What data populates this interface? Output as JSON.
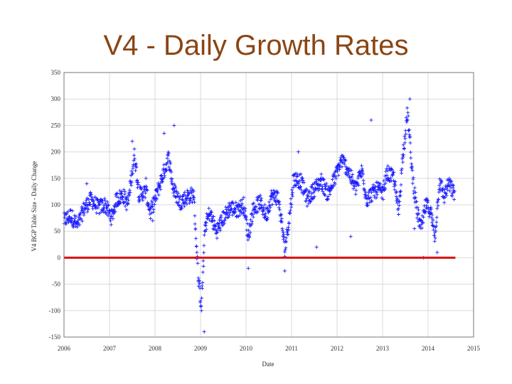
{
  "slide": {
    "title": "V4 - Daily Growth Rates"
  },
  "colors": {
    "title": "#8B4513",
    "points": "#1a1aff",
    "zero_line": "#dd1111",
    "grid": "#d9d9d9"
  },
  "chart_data": {
    "type": "scatter",
    "title": "V4 - Daily Growth Rates",
    "xlabel": "Date",
    "ylabel": "V4 BGP Table Size - Daily Change",
    "xlim": [
      2006,
      2015
    ],
    "ylim": [
      -150,
      350
    ],
    "x_ticks": [
      2006,
      2007,
      2008,
      2009,
      2010,
      2011,
      2012,
      2013,
      2014,
      2015
    ],
    "x_tick_labels": [
      "2006",
      "2007",
      "2008",
      "2009",
      "2010",
      "2011",
      "2012",
      "2013",
      "2014",
      "2015"
    ],
    "y_ticks": [
      350,
      300,
      250,
      200,
      150,
      100,
      50,
      0,
      -50,
      -100,
      -150
    ],
    "y_tick_labels": [
      "350",
      "300",
      "250",
      "200",
      "150",
      "100",
      "50",
      "0",
      "-50",
      "-100",
      "-150"
    ],
    "reference_line": {
      "y": 0,
      "x_start": 2006,
      "x_end": 2014.6,
      "color": "#dd1111"
    },
    "marker": "+",
    "series_trend": [
      [
        2006.0,
        70
      ],
      [
        2006.15,
        80
      ],
      [
        2006.3,
        60
      ],
      [
        2006.45,
        95
      ],
      [
        2006.6,
        110
      ],
      [
        2006.75,
        95
      ],
      [
        2006.9,
        100
      ],
      [
        2007.05,
        75
      ],
      [
        2007.15,
        110
      ],
      [
        2007.3,
        118
      ],
      [
        2007.4,
        100
      ],
      [
        2007.55,
        195
      ],
      [
        2007.65,
        120
      ],
      [
        2007.8,
        125
      ],
      [
        2007.9,
        85
      ],
      [
        2008.0,
        110
      ],
      [
        2008.15,
        150
      ],
      [
        2008.3,
        190
      ],
      [
        2008.4,
        130
      ],
      [
        2008.55,
        105
      ],
      [
        2008.7,
        115
      ],
      [
        2008.85,
        120
      ],
      [
        2008.95,
        -40
      ],
      [
        2009.02,
        -90
      ],
      [
        2009.1,
        60
      ],
      [
        2009.2,
        85
      ],
      [
        2009.35,
        50
      ],
      [
        2009.5,
        75
      ],
      [
        2009.65,
        95
      ],
      [
        2009.8,
        90
      ],
      [
        2009.95,
        100
      ],
      [
        2010.05,
        40
      ],
      [
        2010.15,
        90
      ],
      [
        2010.3,
        105
      ],
      [
        2010.45,
        80
      ],
      [
        2010.55,
        115
      ],
      [
        2010.7,
        115
      ],
      [
        2010.8,
        55
      ],
      [
        2010.85,
        15
      ],
      [
        2010.95,
        75
      ],
      [
        2011.05,
        150
      ],
      [
        2011.2,
        145
      ],
      [
        2011.35,
        110
      ],
      [
        2011.5,
        130
      ],
      [
        2011.65,
        145
      ],
      [
        2011.8,
        120
      ],
      [
        2011.95,
        150
      ],
      [
        2012.1,
        185
      ],
      [
        2012.25,
        165
      ],
      [
        2012.4,
        130
      ],
      [
        2012.55,
        165
      ],
      [
        2012.65,
        110
      ],
      [
        2012.75,
        120
      ],
      [
        2012.9,
        130
      ],
      [
        2013.0,
        120
      ],
      [
        2013.1,
        160
      ],
      [
        2013.25,
        150
      ],
      [
        2013.35,
        85
      ],
      [
        2013.45,
        200
      ],
      [
        2013.55,
        275
      ],
      [
        2013.65,
        160
      ],
      [
        2013.75,
        90
      ],
      [
        2013.85,
        55
      ],
      [
        2013.95,
        100
      ],
      [
        2014.05,
        90
      ],
      [
        2014.15,
        40
      ],
      [
        2014.25,
        145
      ],
      [
        2014.35,
        115
      ],
      [
        2014.45,
        140
      ],
      [
        2014.58,
        120
      ]
    ],
    "outliers": [
      [
        2006.5,
        140
      ],
      [
        2007.5,
        220
      ],
      [
        2007.8,
        150
      ],
      [
        2007.95,
        70
      ],
      [
        2008.2,
        235
      ],
      [
        2008.42,
        250
      ],
      [
        2008.92,
        10
      ],
      [
        2009.08,
        -140
      ],
      [
        2010.05,
        -20
      ],
      [
        2010.85,
        -25
      ],
      [
        2011.15,
        200
      ],
      [
        2011.55,
        20
      ],
      [
        2012.3,
        40
      ],
      [
        2012.75,
        260
      ],
      [
        2013.6,
        300
      ],
      [
        2013.7,
        55
      ],
      [
        2013.9,
        0
      ],
      [
        2014.2,
        10
      ]
    ]
  }
}
